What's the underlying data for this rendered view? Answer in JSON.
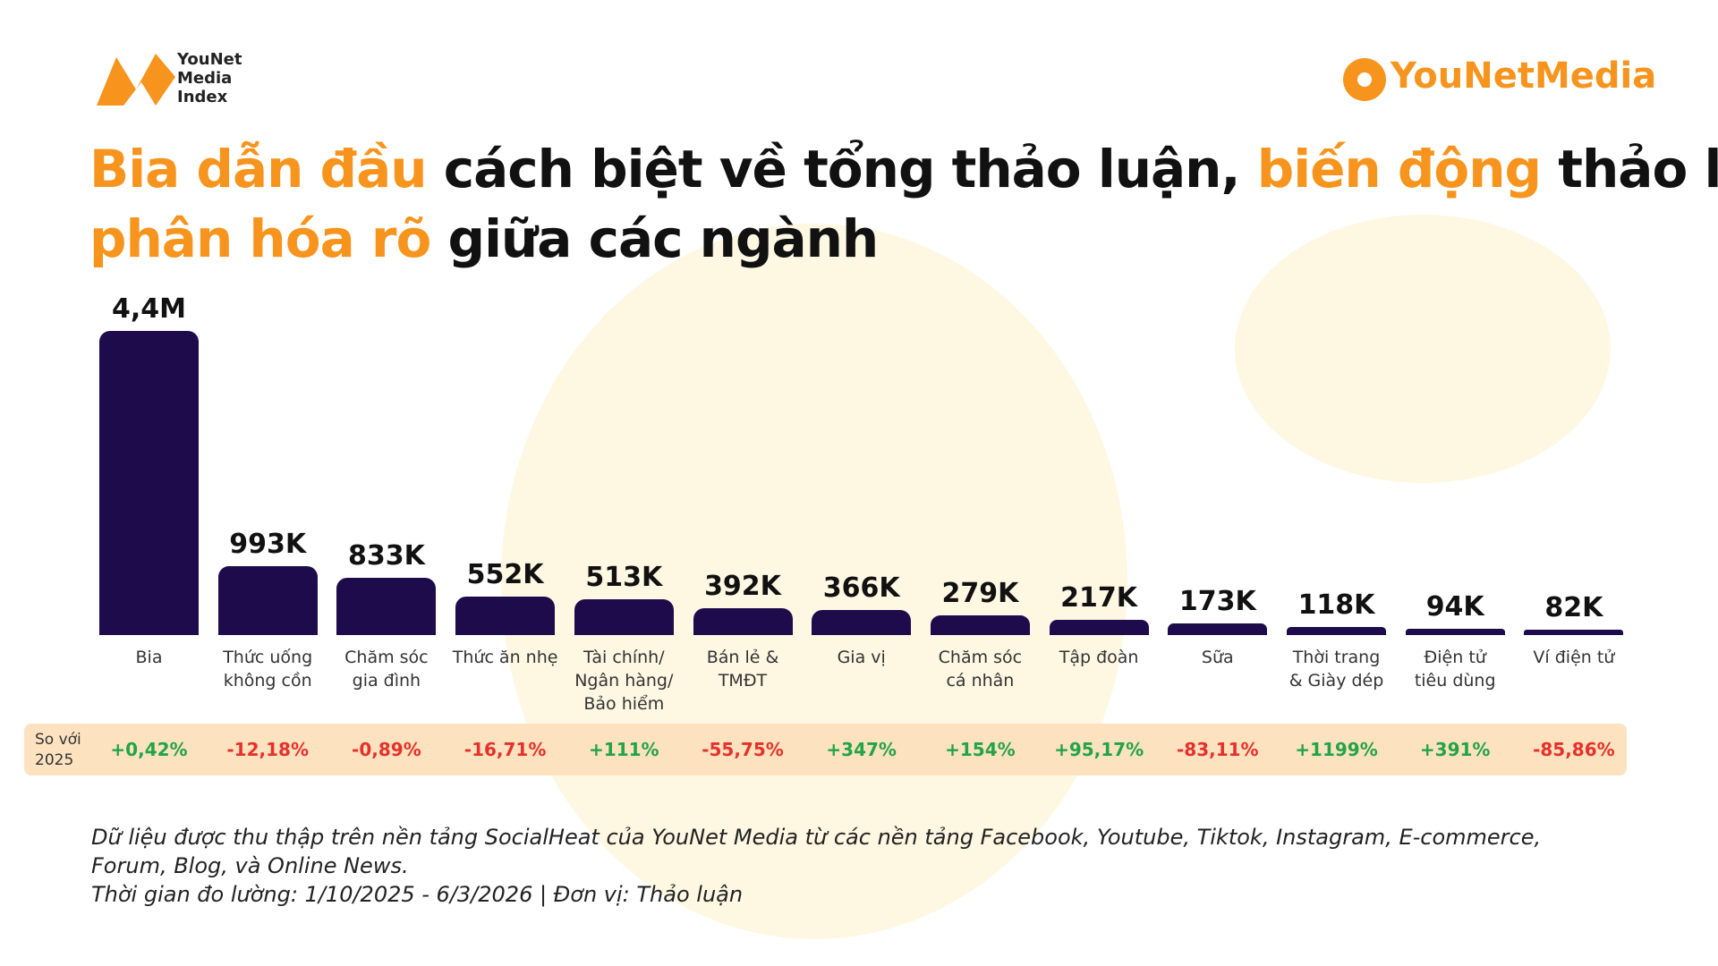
{
  "header": {
    "logo_left": "YouNet\nMedia\nIndex",
    "logo_right_a": "YouNet",
    "logo_right_b": "Media"
  },
  "chart_data": {
    "type": "bar",
    "title_segments": [
      {
        "text": "Bia dẫn đầu",
        "color": "#f7941d"
      },
      {
        "text": " cách biệt về tổng thảo luận, ",
        "color": "#111111"
      },
      {
        "text": "biến động",
        "color": "#f7941d"
      },
      {
        "text": " thảo luận\n",
        "color": "#111111"
      },
      {
        "text": "phân hóa rõ",
        "color": "#f7941d"
      },
      {
        "text": " giữa các ngành",
        "color": "#111111"
      }
    ],
    "categories": [
      "Bia",
      "Thức uống\nkhông cồn",
      "Chăm sóc\ngia đình",
      "Thức ăn nhẹ",
      "Tài chính/\nNgân hàng/\nBảo hiểm",
      "Bán lẻ &\nTMĐT",
      "Gia vị",
      "Chăm sóc\ncá nhân",
      "Tập đoàn",
      "Sữa",
      "Thời trang\n& Giày dép",
      "Điện tử\ntiêu dùng",
      "Ví điện tử"
    ],
    "values": [
      4400000,
      993000,
      833000,
      552000,
      513000,
      392000,
      366000,
      279000,
      217000,
      173000,
      118000,
      94000,
      82000
    ],
    "value_labels": [
      "4,4M",
      "993K",
      "833K",
      "552K",
      "513K",
      "392K",
      "366K",
      "279K",
      "217K",
      "173K",
      "118K",
      "94K",
      "82K"
    ],
    "color": "#1e0b4b",
    "change": {
      "label": "So với\n2025",
      "values": [
        0.42,
        -12.18,
        -0.89,
        -16.71,
        111,
        -55.75,
        347,
        154,
        95.17,
        -83.11,
        1199,
        391,
        -85.86
      ],
      "value_labels": [
        "+0,42%",
        "-12,18%",
        "-0,89%",
        "-16,71%",
        "+111%",
        "-55,75%",
        "+347%",
        "+154%",
        "+95,17%",
        "-83,11%",
        "+1199%",
        "+391%",
        "-85,86%"
      ],
      "positive_color": "#22a447",
      "negative_color": "#e5312b"
    },
    "notes": [
      "Dữ liệu được thu thập trên nền tảng SocialHeat của YouNet Media từ các nền tảng Facebook, Youtube, Tiktok, Instagram, E-commerce, Forum, Blog, và Online News.",
      "Thời gian đo lường: 1/10/2025 - 6/3/2026  | Đơn vị: Thảo luận"
    ]
  }
}
